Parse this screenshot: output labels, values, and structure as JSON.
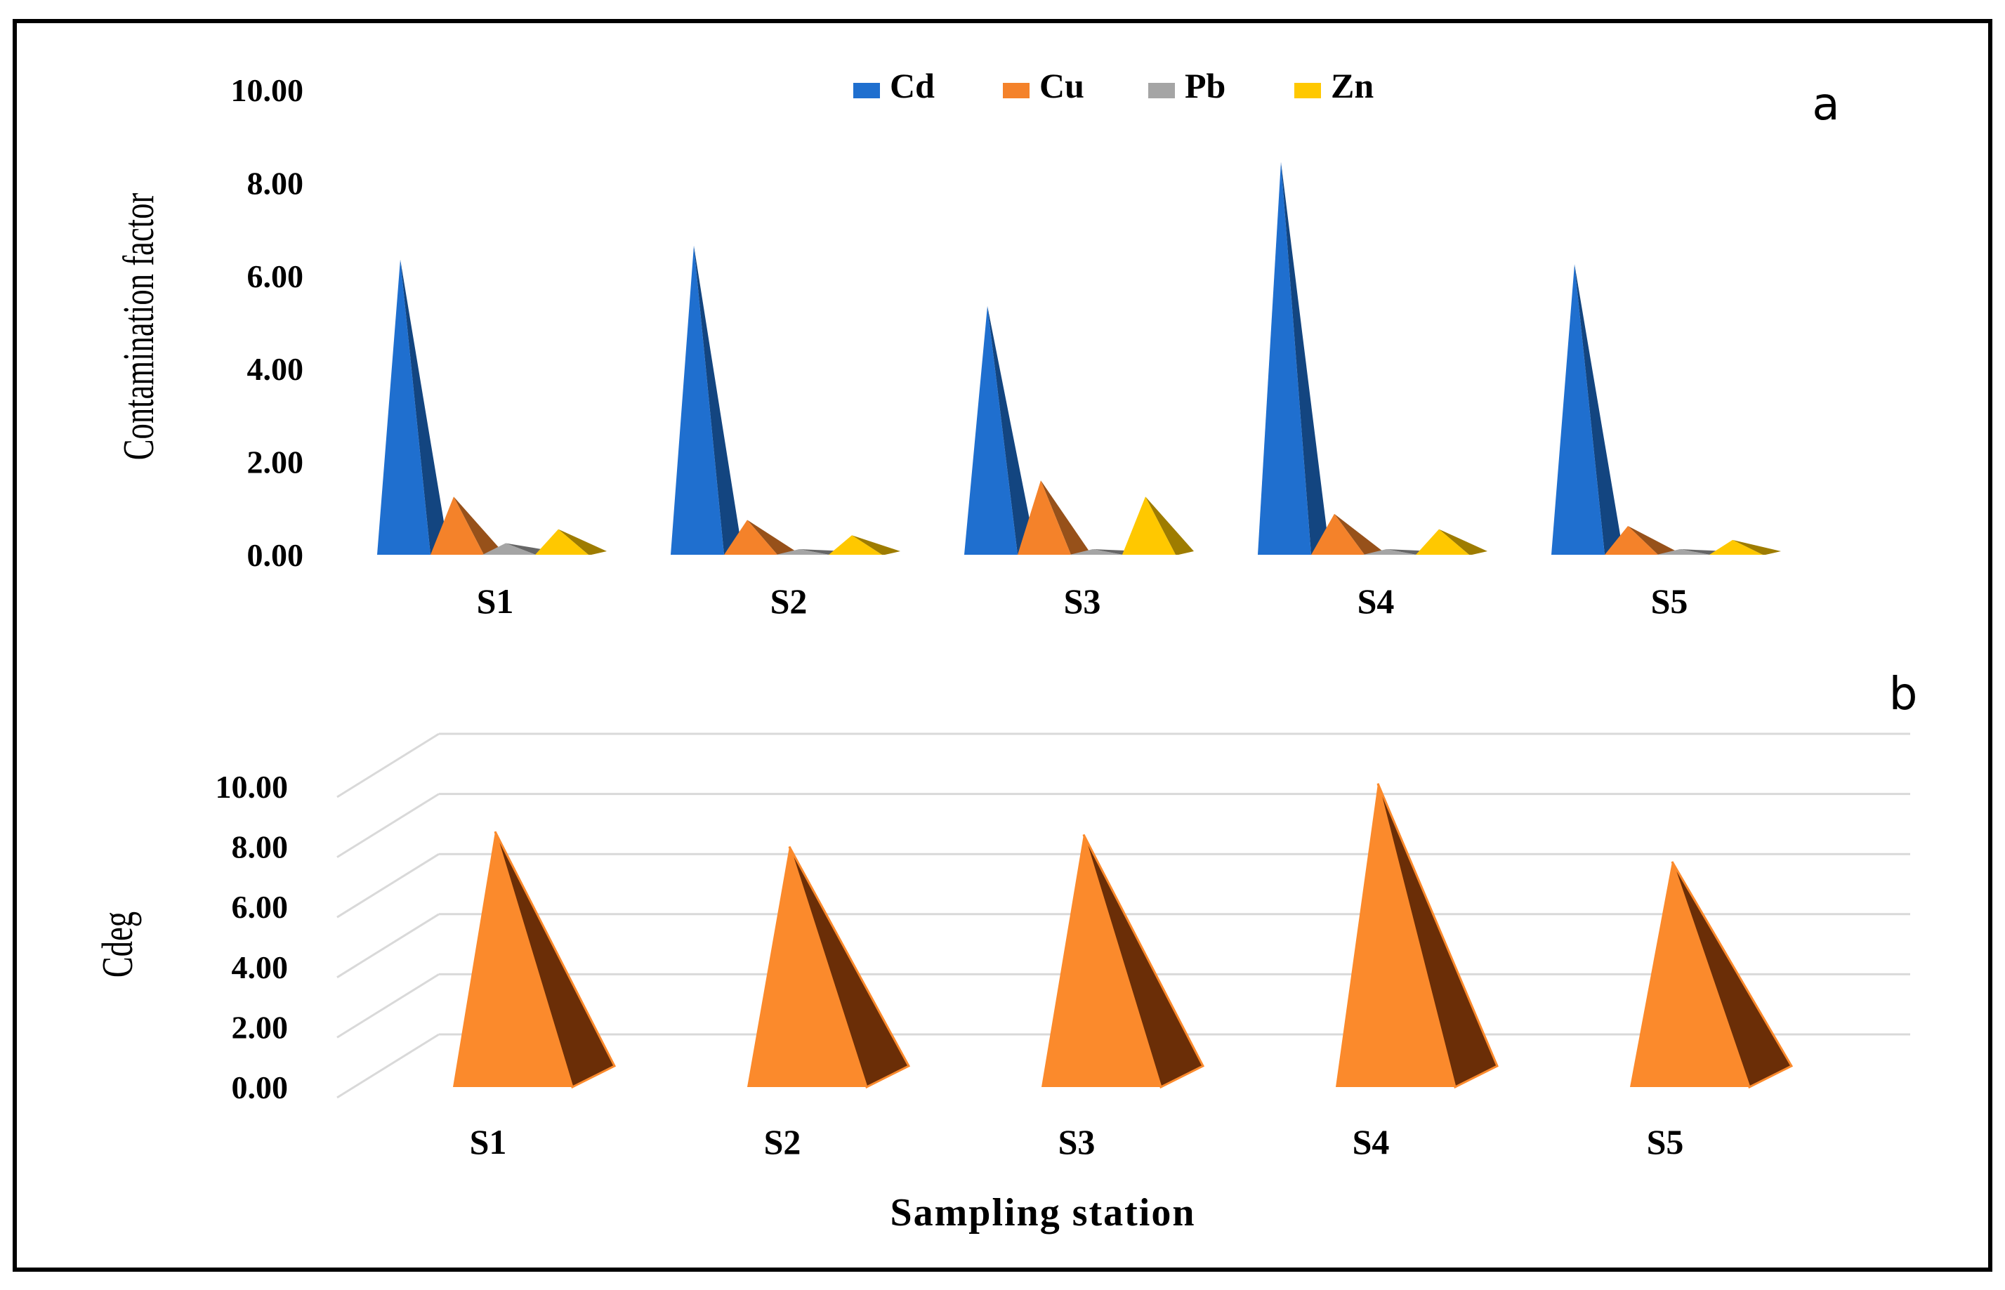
{
  "chart_data": [
    {
      "type": "bar",
      "panel_label": "a",
      "shape": "3d-pyramid",
      "categories": [
        "S1",
        "S2",
        "S3",
        "S4",
        "S5"
      ],
      "series": [
        {
          "name": "Cd",
          "color": "#1f6fcf",
          "values": [
            6.35,
            6.65,
            5.35,
            8.45,
            6.25
          ]
        },
        {
          "name": "Cu",
          "color": "#f4822a",
          "values": [
            1.25,
            0.75,
            1.6,
            0.88,
            0.62
          ]
        },
        {
          "name": "Pb",
          "color": "#a5a5a5",
          "values": [
            0.25,
            0.12,
            0.12,
            0.12,
            0.12
          ]
        },
        {
          "name": "Zn",
          "color": "#ffc800",
          "values": [
            0.55,
            0.42,
            1.25,
            0.55,
            0.32
          ]
        }
      ],
      "title": "",
      "xlabel": "",
      "ylabel": "Contamination factor",
      "ylim": [
        0,
        10
      ],
      "yticks": [
        "0.00",
        "2.00",
        "4.00",
        "6.00",
        "8.00",
        "10.00"
      ],
      "grid": false,
      "legend": "top-center"
    },
    {
      "type": "bar",
      "panel_label": "b",
      "shape": "3d-pyramid",
      "categories": [
        "S1",
        "S2",
        "S3",
        "S4",
        "S5"
      ],
      "series": [
        {
          "name": "Cdeg",
          "color": "#fb8a2c",
          "values": [
            8.5,
            8.0,
            8.4,
            10.1,
            7.5
          ]
        }
      ],
      "title": "",
      "xlabel": "Sampling station",
      "ylabel": "Cdeg",
      "ylim": [
        0,
        10
      ],
      "yticks": [
        "0.00",
        "2.00",
        "4.00",
        "6.00",
        "8.00",
        "10.00"
      ],
      "grid": true,
      "legend": "none"
    }
  ]
}
